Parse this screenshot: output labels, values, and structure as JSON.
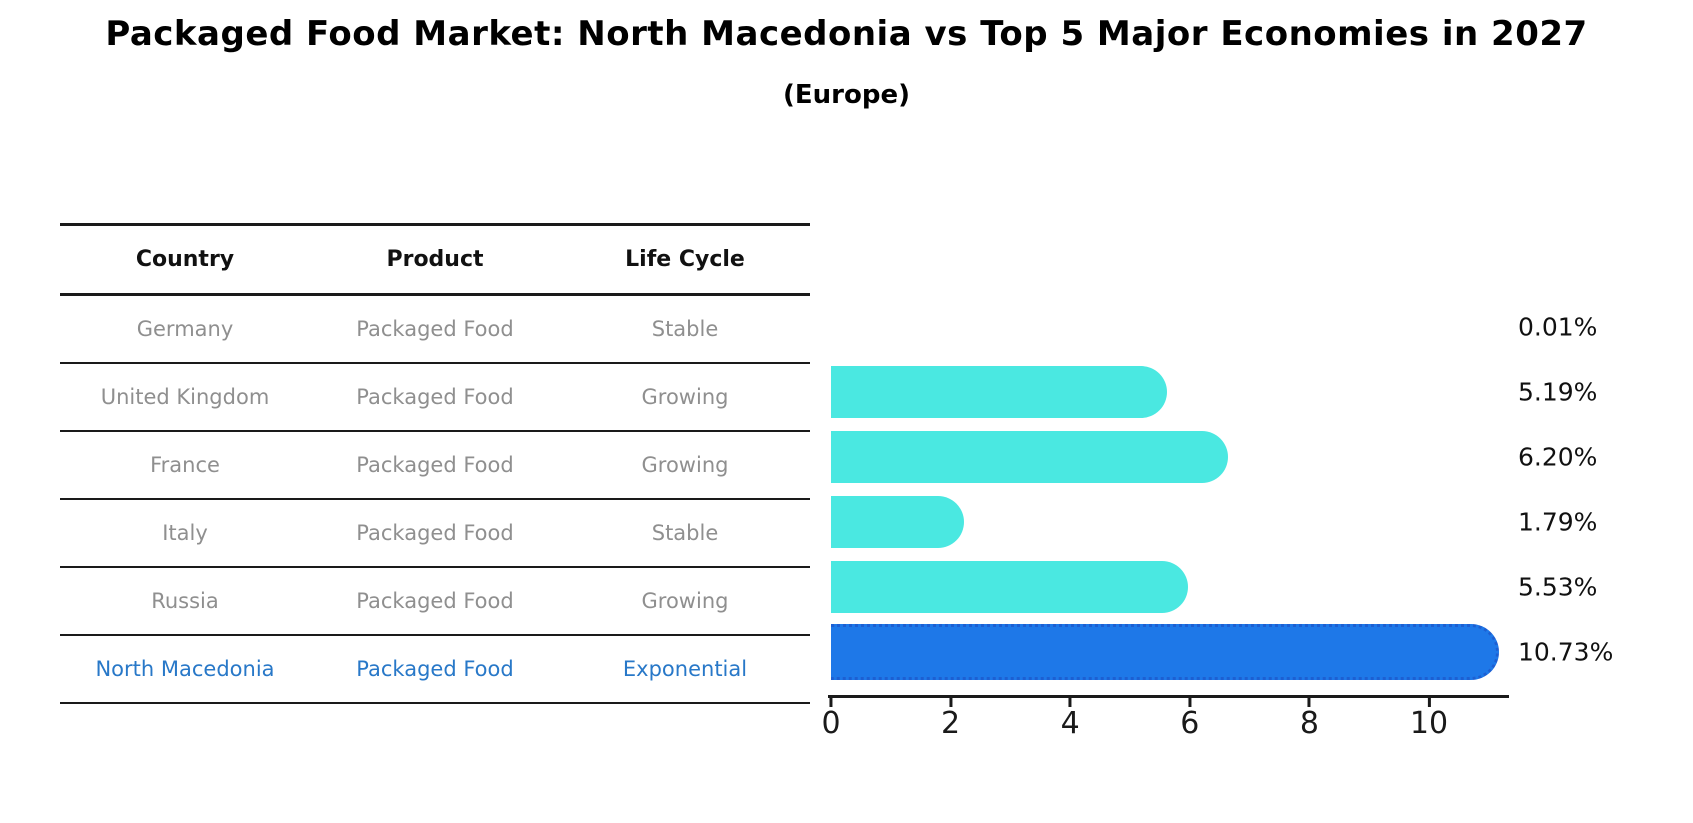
{
  "title": "Packaged Food Market: North Macedonia vs Top 5 Major Economies in 2027",
  "subtitle": "(Europe)",
  "table": {
    "headers": [
      "Country",
      "Product",
      "Life Cycle"
    ],
    "rows": [
      {
        "country": "Germany",
        "product": "Packaged Food",
        "life_cycle": "Stable"
      },
      {
        "country": "United Kingdom",
        "product": "Packaged Food",
        "life_cycle": "Growing"
      },
      {
        "country": "France",
        "product": "Packaged Food",
        "life_cycle": "Growing"
      },
      {
        "country": "Italy",
        "product": "Packaged Food",
        "life_cycle": "Stable"
      },
      {
        "country": "Russia",
        "product": "Packaged Food",
        "life_cycle": "Growing"
      },
      {
        "country": "North Macedonia",
        "product": "Packaged Food",
        "life_cycle": "Exponential"
      }
    ]
  },
  "chart_data": {
    "type": "bar",
    "orientation": "horizontal",
    "title": "Packaged Food Market: North Macedonia vs Top 5 Major Economies in 2027 (Europe)",
    "categories": [
      "Germany",
      "United Kingdom",
      "France",
      "Italy",
      "Russia",
      "North Macedonia"
    ],
    "values": [
      0.01,
      5.19,
      6.2,
      1.79,
      5.53,
      10.73
    ],
    "value_labels": [
      "0.01%",
      "5.19%",
      "6.20%",
      "1.79%",
      "5.53%",
      "10.73%"
    ],
    "x_ticks": [
      0,
      2,
      4,
      6,
      8,
      10
    ],
    "xlim": [
      0,
      11.35
    ],
    "grid": false,
    "legend": false,
    "highlight_index": 5,
    "bar_color": "#4ae8e1",
    "highlight_bar_color": "#1e78e8",
    "highlight_border_color": "#1d5fd2"
  },
  "colors": {
    "row_text": "#8f8f8f",
    "highlight_text": "#2878c8",
    "axis": "#1a1a1a"
  }
}
